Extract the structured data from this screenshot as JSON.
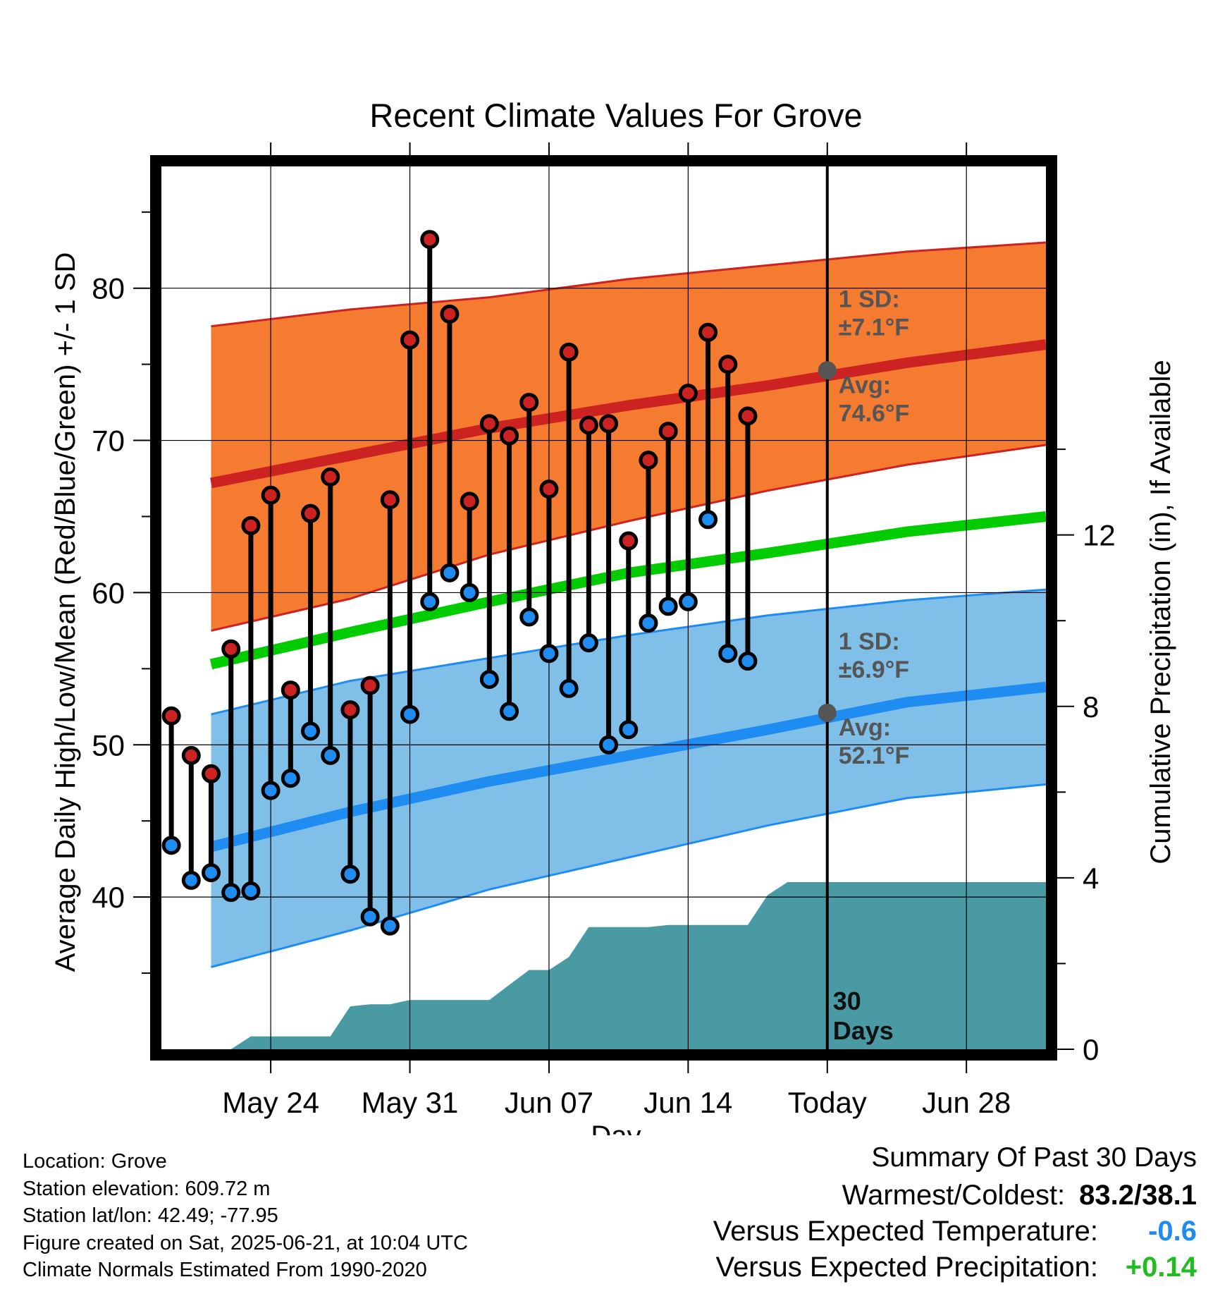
{
  "chart_data": {
    "type": "line",
    "title": "Recent Climate Values For Grove",
    "xlabel": "Day",
    "ylabel": "Average Daily High/Low/Mean (Red/Blue/Green) +/- 1 SD",
    "y2label": "Cumulative Precipitation (in), If Available",
    "ylim": [
      30,
      88
    ],
    "y2lim": [
      0,
      20.6
    ],
    "y_ticks": [
      40,
      50,
      60,
      70,
      80
    ],
    "y2_ticks": [
      0,
      4,
      8,
      12
    ],
    "x_start": "2025-05-21",
    "x_end": "2025-07-02",
    "x_ticks": [
      {
        "date": "2025-05-24",
        "label": "May 24"
      },
      {
        "date": "2025-05-31",
        "label": "May 31"
      },
      {
        "date": "2025-06-07",
        "label": "Jun 07"
      },
      {
        "date": "2025-06-14",
        "label": "Jun 14"
      },
      {
        "date": "2025-06-21",
        "label": "Today"
      },
      {
        "date": "2025-06-28",
        "label": "Jun 28"
      }
    ],
    "grid": true,
    "normals": {
      "dates": [
        "2025-05-21",
        "2025-05-28",
        "2025-06-04",
        "2025-06-11",
        "2025-06-18",
        "2025-06-25",
        "2025-07-02"
      ],
      "avg_high": [
        67.2,
        69.0,
        70.8,
        72.3,
        73.6,
        75.1,
        76.3
      ],
      "high_sd_upper": [
        77.5,
        78.6,
        79.4,
        80.6,
        81.5,
        82.4,
        83.0
      ],
      "high_sd_lower": [
        57.5,
        59.6,
        62.5,
        64.7,
        66.7,
        68.4,
        69.7
      ],
      "avg_mean": [
        55.3,
        57.4,
        59.4,
        61.3,
        62.6,
        64.0,
        65.0
      ],
      "avg_low": [
        43.3,
        45.6,
        47.6,
        49.3,
        51.0,
        52.8,
        53.8
      ],
      "low_sd_upper": [
        52.0,
        54.2,
        55.7,
        57.2,
        58.5,
        59.5,
        60.2
      ],
      "low_sd_lower": [
        35.4,
        37.8,
        40.5,
        42.6,
        44.7,
        46.5,
        47.4
      ]
    },
    "series": [
      {
        "name": "High",
        "color": "#cc2222",
        "values": [
          51.9,
          49.3,
          48.1,
          56.3,
          64.4,
          66.4,
          53.6,
          65.2,
          67.6,
          52.3,
          53.9,
          66.1,
          76.6,
          83.2,
          78.3,
          66.0,
          71.1,
          70.3,
          72.5,
          66.8,
          75.8,
          71.0,
          71.1,
          63.4,
          68.7,
          70.6,
          73.1,
          77.1,
          75.0,
          71.6
        ]
      },
      {
        "name": "Low",
        "color": "#1e8cf0",
        "values": [
          43.4,
          41.1,
          41.6,
          40.3,
          40.4,
          47.0,
          47.8,
          50.9,
          49.3,
          41.5,
          38.7,
          38.1,
          52.0,
          59.4,
          61.3,
          60.0,
          54.3,
          52.2,
          58.4,
          56.0,
          53.7,
          56.7,
          50.0,
          51.0,
          58.0,
          59.1,
          59.4,
          64.8,
          56.0,
          55.5
        ]
      }
    ],
    "obs_dates_start": "2025-05-19",
    "precipitation": {
      "dates": [
        "2025-05-19",
        "2025-05-20",
        "2025-05-21",
        "2025-05-22",
        "2025-05-23",
        "2025-05-24",
        "2025-05-25",
        "2025-05-26",
        "2025-05-27",
        "2025-05-28",
        "2025-05-29",
        "2025-05-30",
        "2025-05-31",
        "2025-06-01",
        "2025-06-02",
        "2025-06-03",
        "2025-06-04",
        "2025-06-05",
        "2025-06-06",
        "2025-06-07",
        "2025-06-08",
        "2025-06-09",
        "2025-06-10",
        "2025-06-11",
        "2025-06-12",
        "2025-06-13",
        "2025-06-14",
        "2025-06-15",
        "2025-06-16",
        "2025-06-17",
        "2025-06-18",
        "2025-06-19",
        "2025-06-20",
        "2025-06-21",
        "2025-07-02"
      ],
      "values": [
        0,
        0,
        0,
        0,
        0.3,
        0.3,
        0.3,
        0.3,
        0.3,
        1.0,
        1.05,
        1.05,
        1.15,
        1.15,
        1.15,
        1.15,
        1.15,
        1.5,
        1.85,
        1.85,
        2.15,
        2.85,
        2.85,
        2.85,
        2.85,
        2.9,
        2.9,
        2.9,
        2.9,
        2.9,
        3.6,
        3.9,
        3.9,
        3.9,
        3.9
      ]
    },
    "annotations": {
      "high": {
        "sd_label": "1 SD:",
        "sd_value": "±7.1°F",
        "avg_label": "Avg:",
        "avg_value": "74.6°F",
        "avg": 74.6
      },
      "low": {
        "sd_label": "1 SD:",
        "sd_value": "±6.9°F",
        "avg_label": "Avg:",
        "avg_value": "52.1°F",
        "avg": 52.1
      },
      "days_label": "30",
      "days_label2": "Days"
    },
    "colors": {
      "high_band": "#f47b30",
      "high_line": "#cc2222",
      "mean_line": "#00cc00",
      "low_band": "#80c0e8",
      "low_line": "#1e8cf0",
      "precip_fill": "#4a9aa4",
      "annotation": "#555555"
    }
  },
  "footer": {
    "location": "Location: Grove",
    "elevation": "Station elevation: 609.72 m",
    "latlon": "Station lat/lon: 42.49; -77.95",
    "created": "Figure created on Sat, 2025-06-21, at 10:04 UTC",
    "normals": "Climate Normals Estimated From 1990-2020"
  },
  "summary": {
    "heading": "Summary Of Past 30 Days",
    "warm_cold_label": "Warmest/Coldest:",
    "warm_cold_value": "83.2/38.1",
    "temp_label": "Versus Expected Temperature:",
    "temp_value": "-0.6",
    "temp_color": "#1e8cf0",
    "precip_label": "Versus Expected Precipitation:",
    "precip_value": "+0.14",
    "precip_color": "#22bb22"
  }
}
